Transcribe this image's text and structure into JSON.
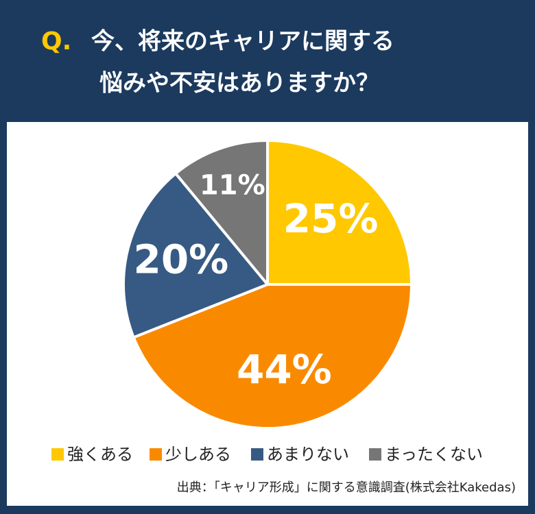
{
  "chart_data": {
    "type": "pie",
    "question_marker": "Q.",
    "title_lines": [
      "今、将来のキャリアに関する",
      "悩みや不安はありますか？"
    ],
    "categories": [
      "強くある",
      "少しある",
      "あまりない",
      "まったくない"
    ],
    "values": [
      25,
      44,
      20,
      11
    ],
    "value_labels": [
      "25%",
      "44%",
      "20%",
      "11%"
    ],
    "colors": [
      "#ffc800",
      "#f98a00",
      "#365a84",
      "#767676"
    ],
    "source": "出典：「キャリア形成」に関する意識調査(株式会社Kakedas)"
  }
}
